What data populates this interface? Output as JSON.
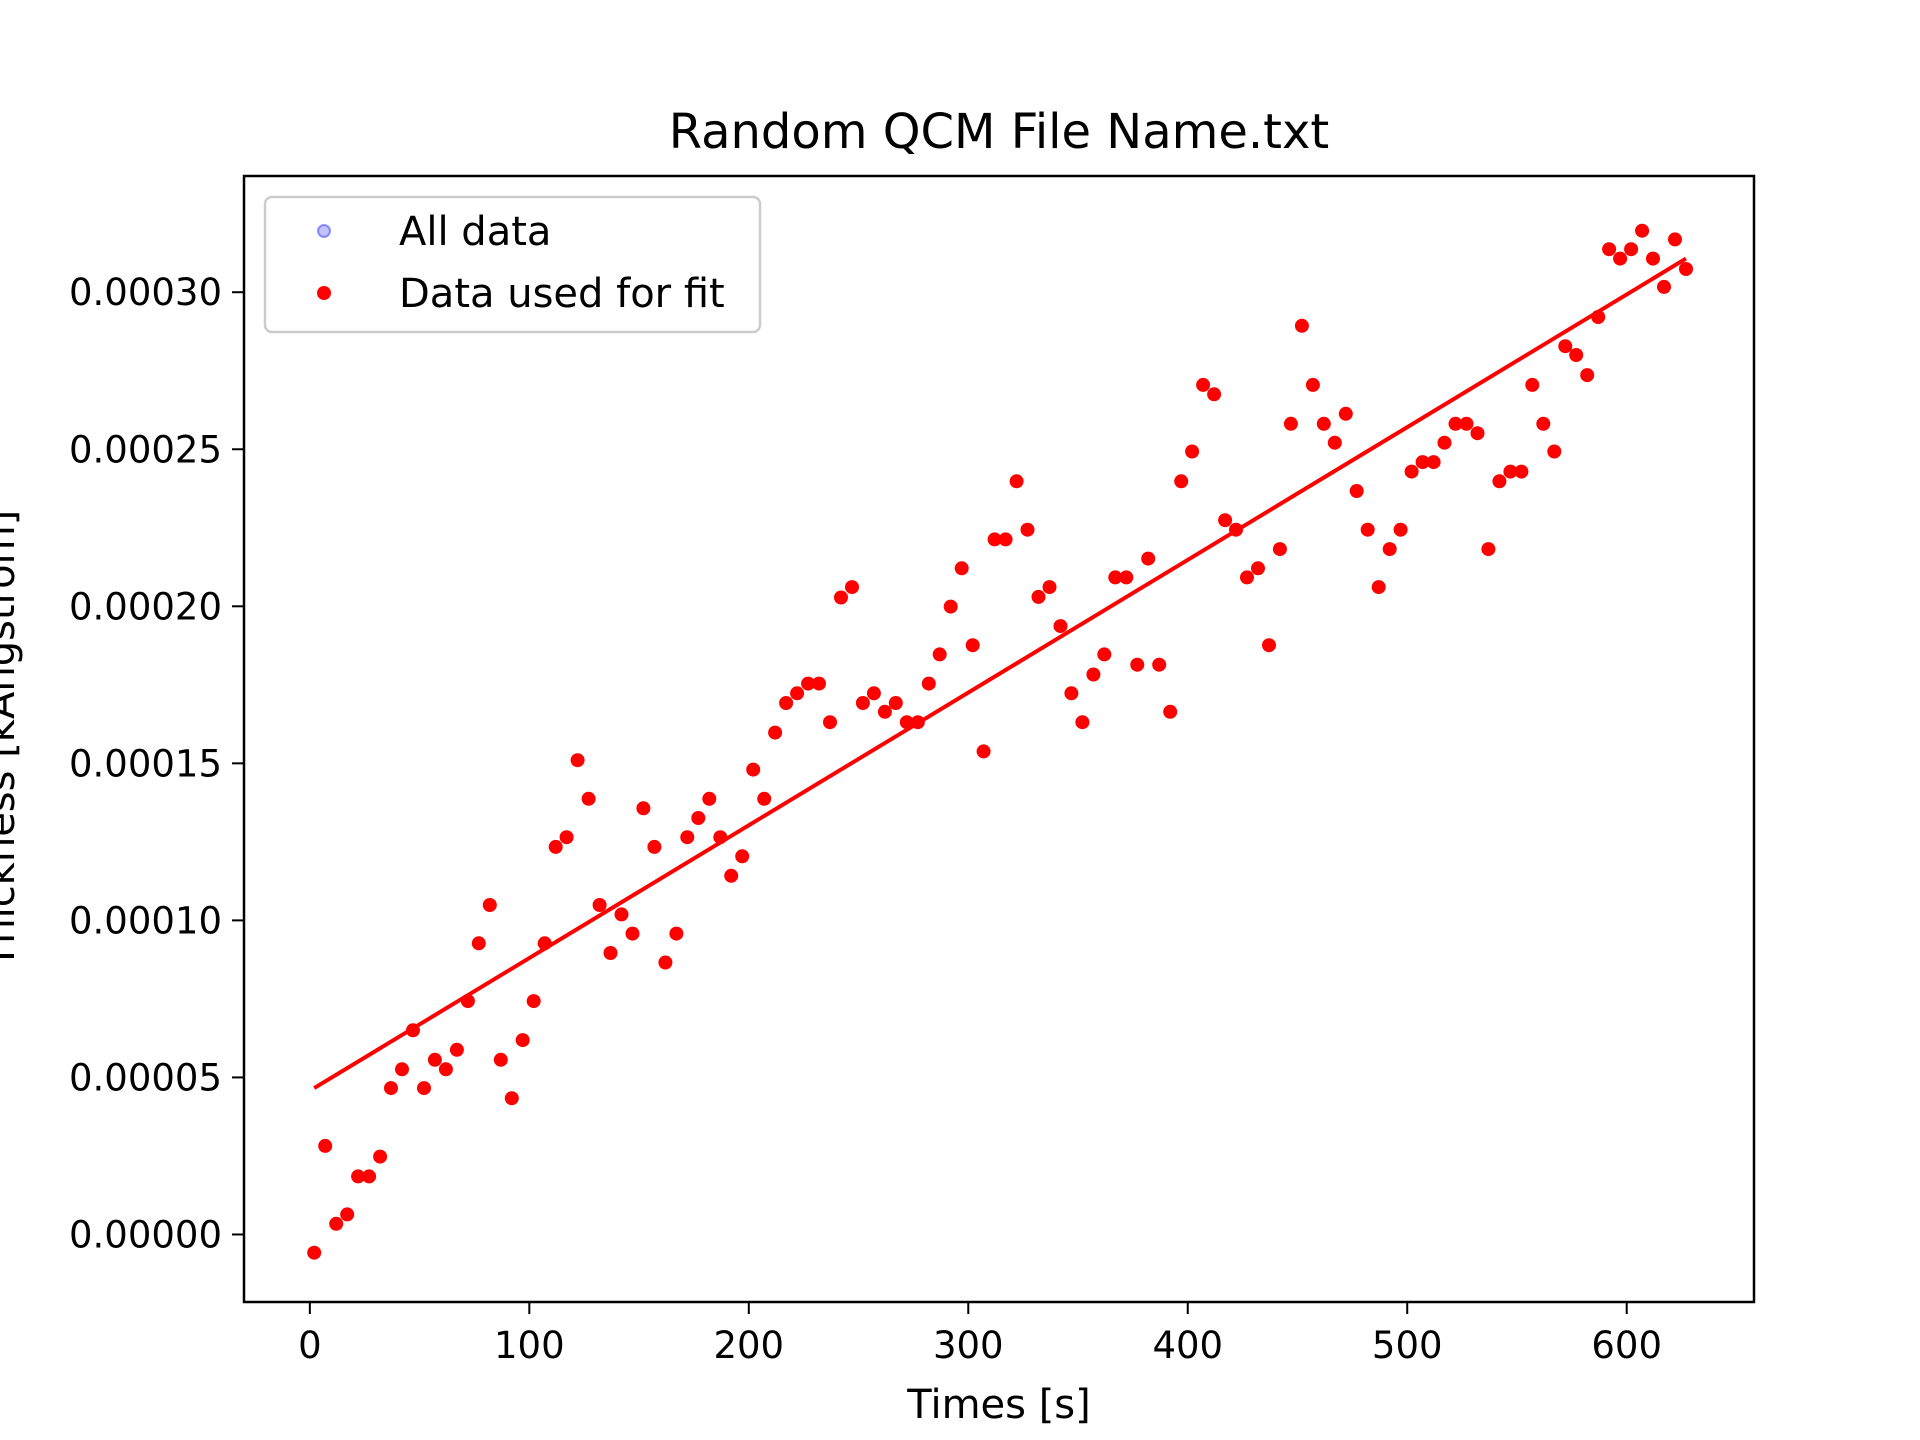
{
  "chart_data": {
    "type": "scatter",
    "title": "Random QCM File Name.txt",
    "xlabel": "Times [s]",
    "ylabel": "Thickness [kÅngstrom]",
    "xlim": [
      -30,
      658
    ],
    "ylim": [
      -2.15e-05,
      0.000337
    ],
    "xticks": [
      0,
      100,
      200,
      300,
      400,
      500,
      600
    ],
    "xtick_labels": [
      "0",
      "100",
      "200",
      "300",
      "400",
      "500",
      "600"
    ],
    "yticks": [
      0,
      5e-05,
      0.0001,
      0.00015,
      0.0002,
      0.00025,
      0.0003
    ],
    "ytick_labels": [
      "0.00000",
      "0.00005",
      "0.00010",
      "0.00015",
      "0.00020",
      "0.00025",
      "0.00030"
    ],
    "grid": false,
    "legend_position": "top-left",
    "series": [
      {
        "name": "All data",
        "style": "faint blue points",
        "color": "#7777ff",
        "x": [],
        "y": []
      },
      {
        "name": "Data used for fit",
        "style": "points",
        "color": "#ff0000",
        "x": [
          2,
          7,
          12,
          17,
          22,
          27,
          32,
          37,
          42,
          47,
          52,
          57,
          62,
          67,
          72,
          77,
          82,
          87,
          92,
          97,
          102,
          107,
          112,
          117,
          122,
          127,
          132,
          137,
          142,
          147,
          152,
          157,
          162,
          167,
          172,
          177,
          182,
          187,
          192,
          197,
          202,
          207,
          212,
          217,
          222,
          227,
          232,
          237,
          242,
          247,
          252,
          257,
          262,
          267,
          272,
          277,
          282,
          287,
          292,
          297,
          302,
          307,
          312,
          317,
          322,
          327,
          332,
          337,
          342,
          347,
          352,
          357,
          362,
          367,
          372,
          377,
          382,
          387,
          392,
          397,
          402,
          407,
          412,
          417,
          422,
          427,
          432,
          437,
          442,
          447,
          452,
          457,
          462,
          467,
          472,
          477,
          482,
          487,
          492,
          497,
          502,
          507,
          512,
          517,
          522,
          527,
          532,
          537,
          542,
          547,
          552,
          557,
          562,
          567,
          572,
          577,
          582,
          587,
          592,
          597,
          602,
          607,
          612,
          617,
          622,
          627
        ],
        "y": [
          -5.8e-06,
          2.82e-05,
          3.4e-06,
          6.4e-06,
          1.85e-05,
          1.85e-05,
          2.48e-05,
          4.66e-05,
          5.26e-05,
          6.5e-05,
          4.66e-05,
          5.56e-05,
          5.26e-05,
          5.88e-05,
          7.43e-05,
          9.27e-05,
          0.0001049,
          5.56e-05,
          4.34e-05,
          6.19e-05,
          7.43e-05,
          9.27e-05,
          0.0001234,
          0.0001265,
          0.000151,
          0.0001387,
          0.0001049,
          8.96e-05,
          0.0001019,
          9.58e-05,
          0.0001357,
          0.0001234,
          8.66e-05,
          9.58e-05,
          0.0001265,
          0.0001326,
          0.0001387,
          0.0001265,
          0.0001142,
          0.0001204,
          0.000148,
          0.0001387,
          0.0001598,
          0.0001692,
          0.0001723,
          0.0001754,
          0.0001754,
          0.0001631,
          0.0002028,
          0.0002061,
          0.0001692,
          0.0001723,
          0.0001664,
          0.0001692,
          0.0001631,
          0.0001631,
          0.0001754,
          0.0001847,
          0.0001999,
          0.0002121,
          0.0001876,
          0.0001538,
          0.0002213,
          0.0002213,
          0.0002398,
          0.0002244,
          0.000203,
          0.0002061,
          0.0001937,
          0.0001723,
          0.0001631,
          0.0001783,
          0.0001847,
          0.0002092,
          0.0002092,
          0.0001814,
          0.0002152,
          0.0001814,
          0.0001664,
          0.0002398,
          0.0002493,
          0.0002705,
          0.0002675,
          0.0002274,
          0.0002244,
          0.0002092,
          0.0002121,
          0.0001876,
          0.0002182,
          0.0002581,
          0.0002893,
          0.0002705,
          0.0002581,
          0.0002521,
          0.0002613,
          0.0002367,
          0.0002244,
          0.0002061,
          0.0002182,
          0.0002244,
          0.0002429,
          0.0002459,
          0.0002459,
          0.0002521,
          0.0002581,
          0.0002581,
          0.0002551,
          0.0002182,
          0.0002398,
          0.0002429,
          0.0002429,
          0.0002705,
          0.0002581,
          0.0002493,
          0.0002828,
          0.00028,
          0.0002736,
          0.0002921,
          0.0003137,
          0.0003107,
          0.0003137,
          0.0003196,
          0.0003107,
          0.0003017,
          0.0003168,
          0.0003074
        ]
      },
      {
        "name": "",
        "style": "linear fit line",
        "color": "#ff0000",
        "x": [
          2,
          627
        ],
        "y": [
          4.66e-05,
          0.0003107
        ]
      }
    ]
  }
}
